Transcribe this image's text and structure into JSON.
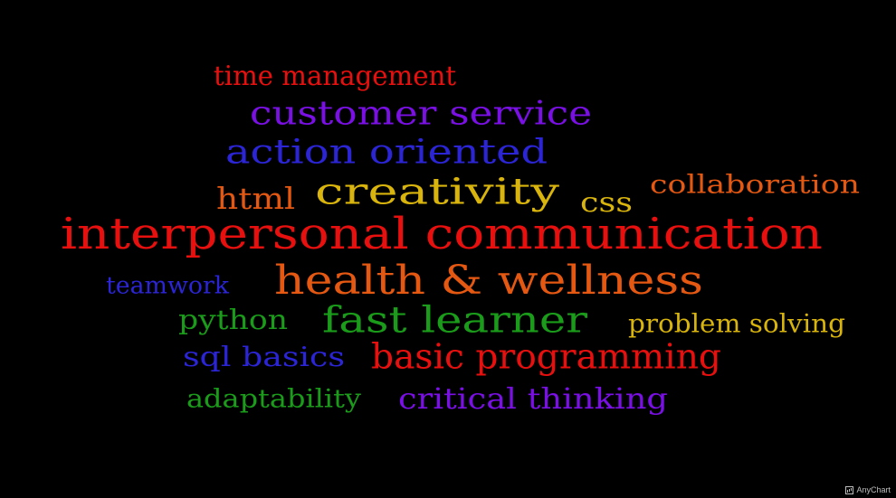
{
  "chart_data": {
    "type": "wordcloud",
    "words": [
      {
        "text": "time management",
        "value": 3,
        "color": "#e8100e"
      },
      {
        "text": "customer service",
        "value": 4,
        "color": "#7b10e6"
      },
      {
        "text": "action oriented",
        "value": 4,
        "color": "#2b25d6"
      },
      {
        "text": "html",
        "value": 3,
        "color": "#e55812"
      },
      {
        "text": "creativity",
        "value": 4,
        "color": "#d8b40c"
      },
      {
        "text": "css",
        "value": 3,
        "color": "#d8b40c"
      },
      {
        "text": "collaboration",
        "value": 3,
        "color": "#e55812"
      },
      {
        "text": "interpersonal communication",
        "value": 5,
        "color": "#e8100e"
      },
      {
        "text": "teamwork",
        "value": 2,
        "color": "#2b25d6"
      },
      {
        "text": "health & wellness",
        "value": 5,
        "color": "#e55812"
      },
      {
        "text": "python",
        "value": 3,
        "color": "#1a9b1a"
      },
      {
        "text": "fast learner",
        "value": 4,
        "color": "#1a9b1a"
      },
      {
        "text": "problem solving",
        "value": 3,
        "color": "#d8b40c"
      },
      {
        "text": "sql basics",
        "value": 3,
        "color": "#2b25d6"
      },
      {
        "text": "basic programming",
        "value": 4,
        "color": "#e8100e"
      },
      {
        "text": "adaptability",
        "value": 3,
        "color": "#1a9b1a"
      },
      {
        "text": "critical thinking",
        "value": 3,
        "color": "#7b10e6"
      }
    ]
  },
  "credits": {
    "label": "AnyChart",
    "logo_icon": "chart-bars-icon"
  }
}
